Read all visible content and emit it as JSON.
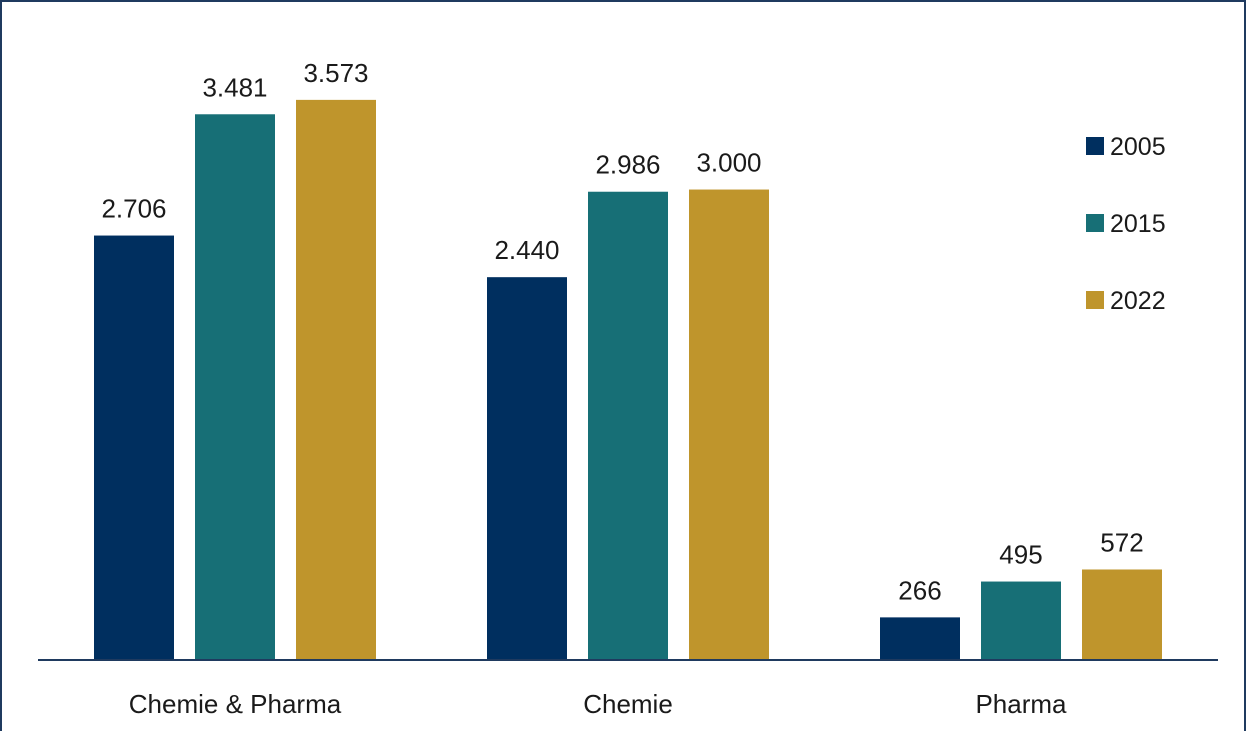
{
  "chart_data": {
    "type": "bar",
    "categories": [
      "Chemie & Pharma",
      "Chemie",
      "Pharma"
    ],
    "series": [
      {
        "name": "2005",
        "values": [
          2706,
          2440,
          266
        ],
        "labels": [
          "2.706",
          "2.440",
          "266"
        ],
        "color": "#002f5f"
      },
      {
        "name": "2015",
        "values": [
          3481,
          2986,
          495
        ],
        "labels": [
          "3.481",
          "2.986",
          "495"
        ],
        "color": "#176f76"
      },
      {
        "name": "2022",
        "values": [
          3573,
          3000,
          572
        ],
        "labels": [
          "3.573",
          "3.000",
          "572"
        ],
        "color": "#bf952c"
      }
    ],
    "title": "",
    "xlabel": "",
    "ylabel": "",
    "ylim": [
      0,
      3700
    ],
    "grid": false,
    "legend": "right"
  },
  "colors": {
    "axis": "#1f3a5f",
    "frame": "#1f3a5f"
  }
}
